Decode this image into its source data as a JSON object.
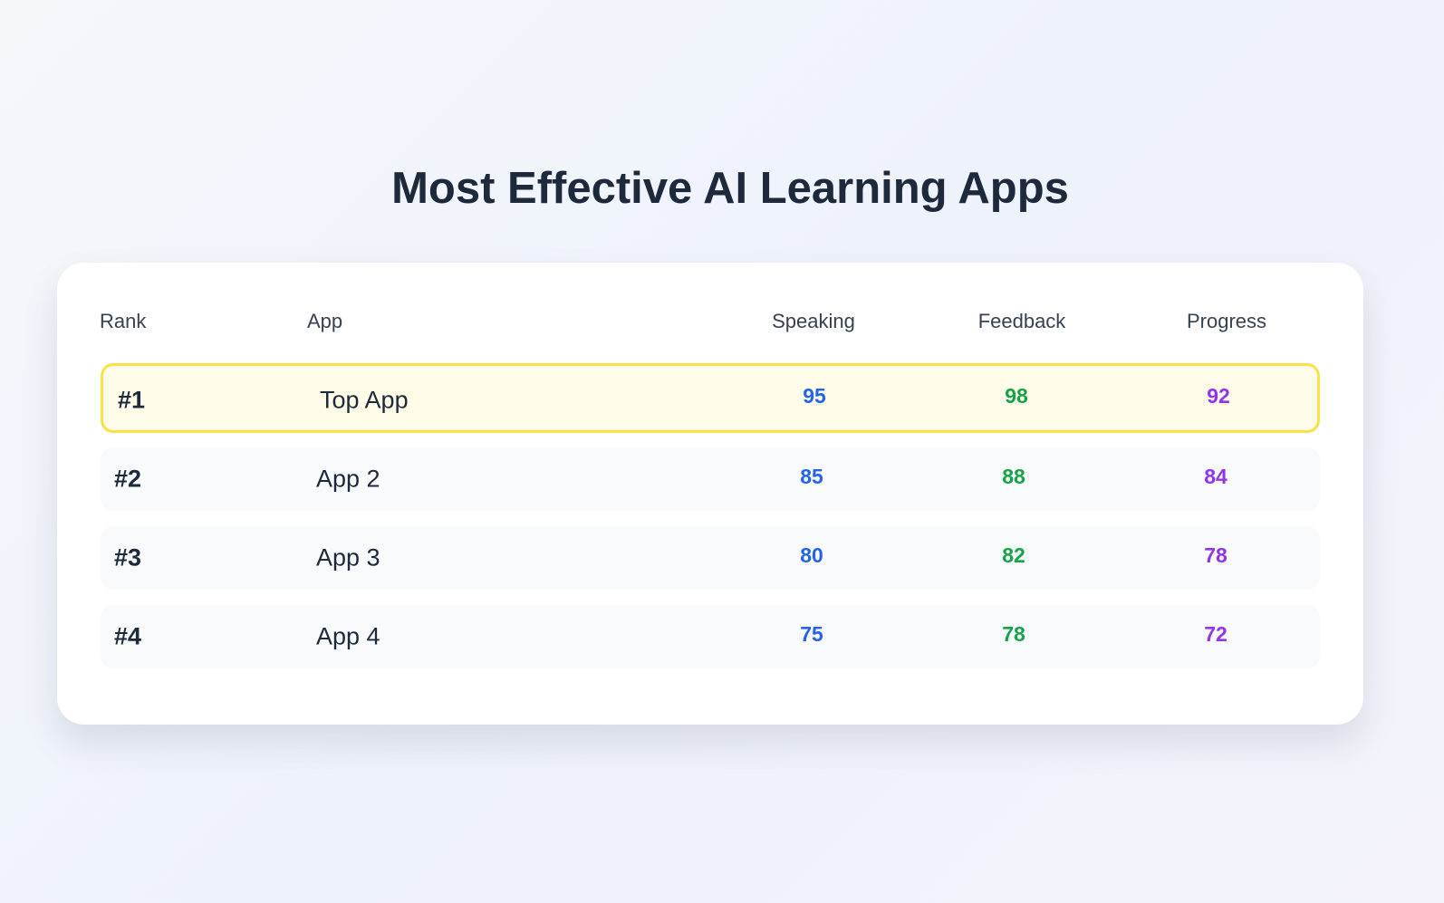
{
  "title": "Most Effective AI Learning Apps",
  "table": {
    "headers": [
      "Rank",
      "App",
      "Speaking",
      "Feedback",
      "Progress"
    ],
    "rows": [
      [
        "#1",
        "Top App",
        95,
        98,
        92
      ],
      [
        "#2",
        "App 2",
        85,
        88,
        84
      ],
      [
        "#3",
        "App 3",
        80,
        82,
        78
      ],
      [
        "#4",
        "App 4",
        75,
        78,
        72
      ]
    ]
  }
}
